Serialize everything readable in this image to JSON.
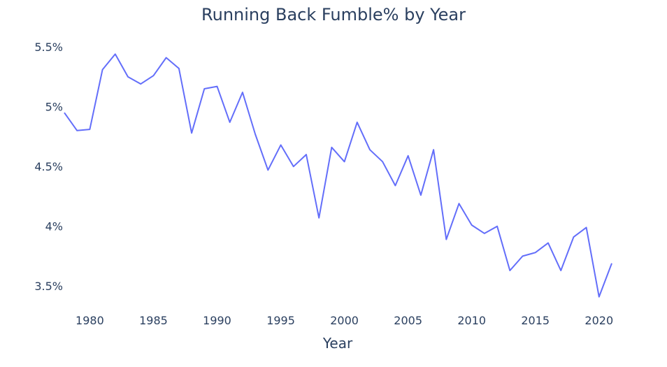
{
  "chart_data": {
    "type": "line",
    "title": "Running Back Fumble% by Year",
    "xlabel": "Year",
    "ylabel": "",
    "xlim": [
      1978,
      2021
    ],
    "ylim": [
      3.32,
      5.6
    ],
    "x_ticks": [
      1980,
      1985,
      1990,
      1995,
      2000,
      2005,
      2010,
      2015,
      2020
    ],
    "y_ticks": [
      3.5,
      4,
      4.5,
      5,
      5.5
    ],
    "y_tick_labels": [
      "3.5%",
      "4%",
      "4.5%",
      "5%",
      "5.5%"
    ],
    "grid": false,
    "line_color": "#636efa",
    "x": [
      1978,
      1979,
      1980,
      1981,
      1982,
      1983,
      1984,
      1985,
      1986,
      1987,
      1988,
      1989,
      1990,
      1991,
      1992,
      1993,
      1994,
      1995,
      1996,
      1997,
      1998,
      1999,
      2000,
      2001,
      2002,
      2003,
      2004,
      2005,
      2006,
      2007,
      2008,
      2009,
      2010,
      2011,
      2012,
      2013,
      2014,
      2015,
      2016,
      2017,
      2018,
      2019,
      2020,
      2021
    ],
    "values": [
      4.95,
      4.8,
      4.81,
      5.31,
      5.44,
      5.25,
      5.19,
      5.26,
      5.41,
      5.32,
      4.78,
      5.15,
      5.17,
      4.87,
      5.12,
      4.77,
      4.47,
      4.68,
      4.5,
      4.6,
      4.07,
      4.66,
      4.54,
      4.87,
      4.64,
      4.54,
      4.34,
      4.59,
      4.26,
      4.64,
      3.89,
      4.19,
      4.01,
      3.94,
      4.0,
      3.63,
      3.75,
      3.78,
      3.86,
      3.63,
      3.91,
      3.99,
      3.41,
      3.69
    ]
  }
}
